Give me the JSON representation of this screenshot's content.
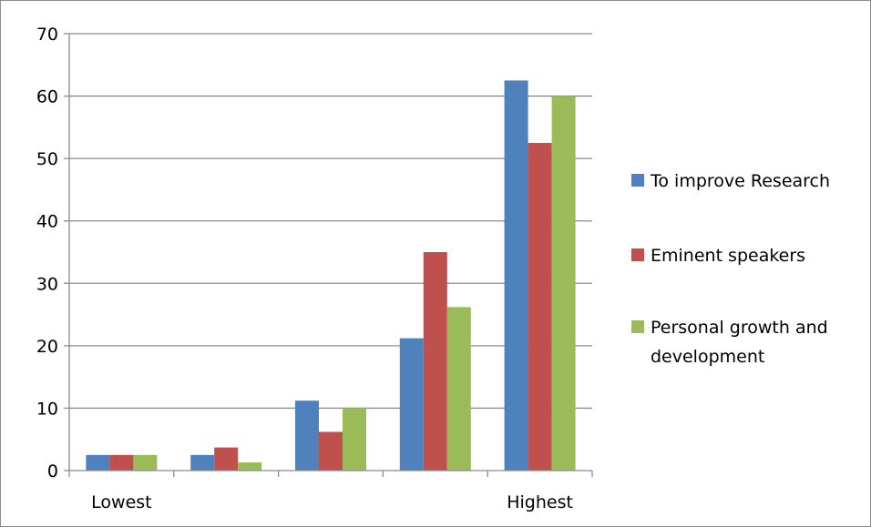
{
  "chart_data": {
    "type": "bar",
    "categories": [
      "Lowest",
      "",
      "",
      "",
      "Highest"
    ],
    "series": [
      {
        "name": "To improve Research",
        "color": "#4F81BD",
        "values": [
          2.5,
          2.5,
          11.2,
          21.2,
          62.5
        ]
      },
      {
        "name": "Eminent speakers",
        "color": "#C0504D",
        "values": [
          2.5,
          3.7,
          6.2,
          35.0,
          52.5
        ]
      },
      {
        "name": "Personal growth and development",
        "color": "#9BBB59",
        "values": [
          2.5,
          1.3,
          10.0,
          26.2,
          60.0
        ]
      }
    ],
    "ylim": [
      0,
      70
    ],
    "yticks": [
      0,
      10,
      20,
      30,
      40,
      50,
      60,
      70
    ],
    "grid": true,
    "legend_position": "right",
    "legend_lines": [
      [
        "To improve Research"
      ],
      [
        "Eminent speakers"
      ],
      [
        "Personal growth and",
        "development"
      ]
    ]
  }
}
